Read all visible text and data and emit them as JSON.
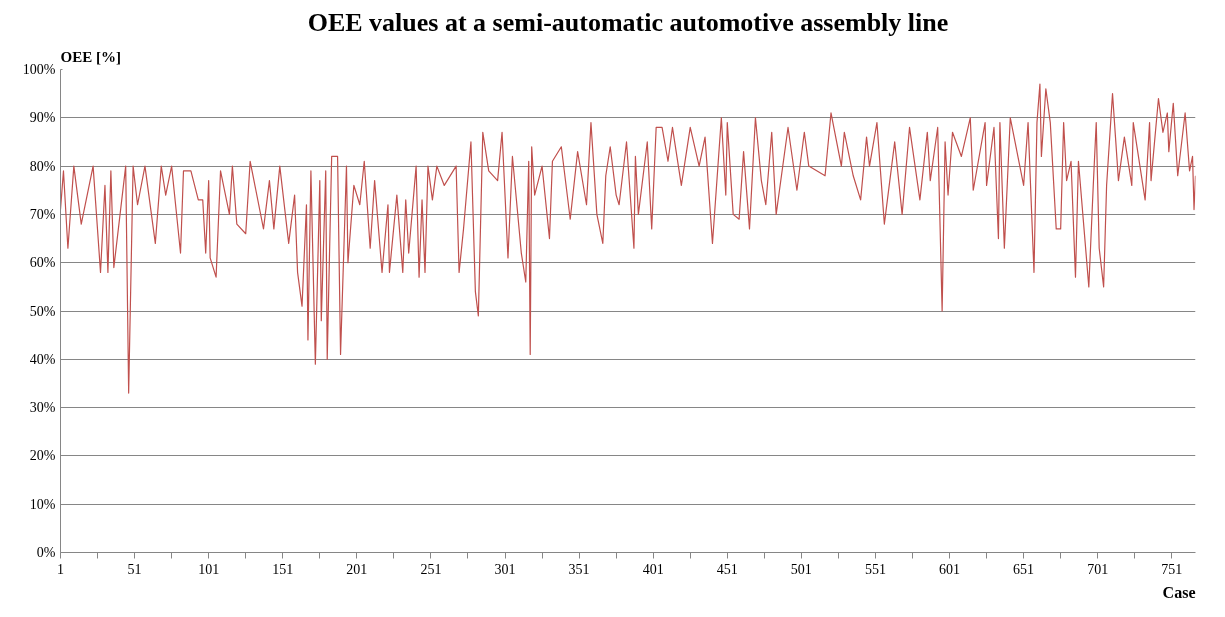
{
  "chart_data": {
    "type": "line",
    "title": "OEE values at a semi-automatic automotive assembly line",
    "ylabel": "OEE [%]",
    "xlabel": "Case",
    "xlim": [
      1,
      767
    ],
    "xticks": [
      1,
      {
        "value": 26,
        "label": null
      },
      51,
      {
        "value": 76,
        "label": null
      },
      101,
      {
        "value": 126,
        "label": null
      },
      151,
      {
        "value": 176,
        "label": null
      },
      201,
      {
        "value": 226,
        "label": null
      },
      251,
      {
        "value": 276,
        "label": null
      },
      301,
      {
        "value": 326,
        "label": null
      },
      351,
      {
        "value": 376,
        "label": null
      },
      401,
      {
        "value": 426,
        "label": null
      },
      451,
      {
        "value": 476,
        "label": null
      },
      501,
      {
        "value": 526,
        "label": null
      },
      551,
      {
        "value": 576,
        "label": null
      },
      601,
      {
        "value": 626,
        "label": null
      },
      651,
      {
        "value": 676,
        "label": null
      },
      701,
      {
        "value": 726,
        "label": null
      },
      751
    ],
    "ylim": [
      0,
      100
    ],
    "yticks": [
      {
        "value": 0,
        "label": "0%"
      },
      {
        "value": 10,
        "label": "10%"
      },
      {
        "value": 20,
        "label": "20%"
      },
      {
        "value": 30,
        "label": "30%"
      },
      {
        "value": 40,
        "label": "40%"
      },
      {
        "value": 50,
        "label": "50%"
      },
      {
        "value": 60,
        "label": "60%"
      },
      {
        "value": 70,
        "label": "70%"
      },
      {
        "value": 80,
        "label": "80%"
      },
      {
        "value": 90,
        "label": "90%"
      },
      {
        "value": 100,
        "label": "100%"
      }
    ],
    "grid": "y",
    "series": [
      {
        "color": "#c0504d",
        "x": [
          1,
          3,
          6,
          10,
          15,
          23,
          28,
          31,
          33,
          35,
          37,
          45,
          47,
          50,
          53,
          58,
          65,
          69,
          72,
          76,
          82,
          84,
          89,
          94,
          97,
          99,
          101,
          102,
          106,
          109,
          115,
          117,
          120,
          126,
          129,
          138,
          142,
          145,
          149,
          155,
          159,
          161,
          164,
          167,
          168,
          170,
          173,
          176,
          177,
          180,
          181,
          184,
          188,
          190,
          194,
          195,
          199,
          203,
          206,
          210,
          213,
          218,
          222,
          223,
          228,
          232,
          234,
          236,
          241,
          243,
          245,
          247,
          249,
          252,
          255,
          260,
          268,
          270,
          273,
          278,
          281,
          283,
          286,
          290,
          296,
          299,
          303,
          306,
          312,
          315,
          317,
          318,
          319,
          321,
          326,
          331,
          333,
          339,
          345,
          350,
          356,
          359,
          363,
          367,
          369,
          372,
          376,
          378,
          383,
          388,
          389,
          391,
          397,
          400,
          403,
          407,
          411,
          414,
          420,
          426,
          432,
          436,
          441,
          447,
          450,
          451,
          455,
          459,
          462,
          466,
          470,
          474,
          477,
          481,
          484,
          492,
          498,
          503,
          506,
          517,
          521,
          528,
          530,
          536,
          541,
          545,
          547,
          552,
          557,
          564,
          569,
          574,
          581,
          586,
          588,
          593,
          596,
          598,
          600,
          603,
          609,
          615,
          617,
          625,
          626,
          631,
          634,
          635,
          638,
          642,
          651,
          654,
          658,
          660,
          662,
          663,
          666,
          669,
          673,
          676,
          678,
          680,
          683,
          686,
          688,
          695,
          698,
          700,
          702,
          705,
          707,
          711,
          713,
          715,
          719,
          724,
          725,
          733,
          736,
          737,
          742,
          745,
          748,
          749,
          752,
          755,
          760,
          763,
          765,
          766,
          767
        ],
        "values": [
          71,
          79,
          63,
          80,
          68,
          80,
          58,
          76,
          58,
          79,
          59,
          80,
          33,
          80,
          72,
          80,
          64,
          80,
          74,
          80,
          62,
          79,
          79,
          73,
          73,
          62,
          77,
          61,
          57,
          79,
          70,
          80,
          68,
          66,
          81,
          67,
          77,
          67,
          80,
          64,
          74,
          58,
          51,
          72,
          44,
          79,
          39,
          77,
          48,
          79,
          40,
          82,
          82,
          41,
          80,
          60,
          76,
          72,
          81,
          63,
          77,
          58,
          72,
          58,
          74,
          58,
          73,
          62,
          80,
          57,
          73,
          58,
          80,
          73,
          80,
          76,
          80,
          58,
          67,
          85,
          54,
          49,
          87,
          79,
          77,
          87,
          61,
          82,
          62,
          56,
          81,
          41,
          84,
          74,
          80,
          65,
          81,
          84,
          69,
          83,
          72,
          89,
          70,
          64,
          78,
          84,
          74,
          72,
          85,
          63,
          82,
          70,
          85,
          67,
          88,
          88,
          81,
          88,
          76,
          88,
          80,
          86,
          64,
          90,
          74,
          89,
          70,
          69,
          83,
          67,
          90,
          77,
          72,
          87,
          70,
          88,
          75,
          87,
          80,
          78,
          91,
          80,
          87,
          78,
          73,
          86,
          80,
          89,
          68,
          85,
          70,
          88,
          73,
          87,
          77,
          88,
          50,
          85,
          74,
          87,
          82,
          90,
          75,
          89,
          76,
          88,
          65,
          89,
          63,
          90,
          76,
          89,
          58,
          89,
          97,
          82,
          96,
          89,
          67,
          67,
          89,
          77,
          81,
          57,
          81,
          55,
          76,
          89,
          63,
          55,
          76,
          95,
          86,
          77,
          86,
          76,
          89,
          73,
          89,
          77,
          94,
          87,
          91,
          83,
          93,
          78,
          91,
          79,
          82,
          71,
          78
        ]
      }
    ]
  }
}
